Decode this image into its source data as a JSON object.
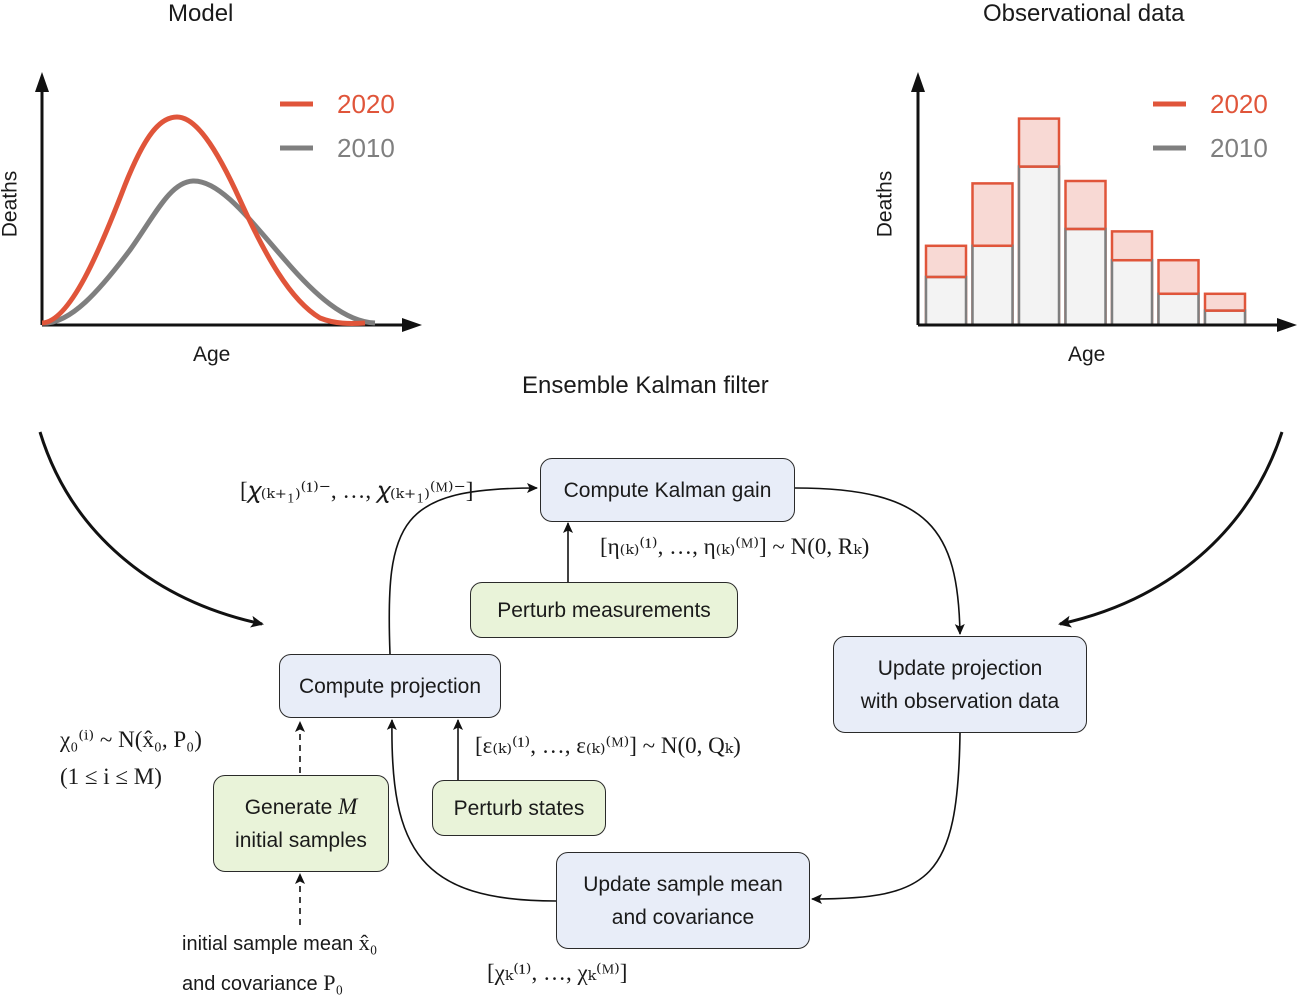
{
  "titles": {
    "model": "Model",
    "observational": "Observational data",
    "filter": "Ensemble Kalman filter"
  },
  "colors": {
    "series_2020": "#e0553a",
    "series_2010": "#7f7f7f",
    "box_blue": "#e8edf8",
    "box_green": "#e9f3d9"
  },
  "model_plot": {
    "ylabel": "Deaths",
    "xlabel": "Age",
    "legend": [
      "2020",
      "2010"
    ]
  },
  "obs_plot": {
    "ylabel": "Deaths",
    "xlabel": "Age",
    "legend": [
      "2020",
      "2010"
    ],
    "bars_2010": [
      1.0,
      1.65,
      3.3,
      2.0,
      1.35,
      0.65,
      0.3
    ],
    "bars_2020": [
      1.65,
      2.95,
      4.3,
      3.0,
      1.95,
      1.35,
      0.65
    ]
  },
  "boxes": {
    "kalman_gain": "Compute Kalman gain",
    "perturb_measurements": "Perturb measurements",
    "compute_projection": "Compute projection",
    "update_projection_1": "Update projection",
    "update_projection_2": "with observation data",
    "perturb_states": "Perturb states",
    "generate_1": "Generate",
    "generate_var": "M",
    "generate_2": "initial samples",
    "update_mean_1": "Update sample mean",
    "update_mean_2": "and covariance"
  },
  "math": {
    "prior_ensemble": "[𝜒₍ₖ₊₁₎⁽¹⁾⁻, …, 𝜒₍ₖ₊₁₎⁽ᴹ⁾⁻]",
    "eta_noise": "[η₍ₖ₎⁽¹⁾, …, η₍ₖ₎⁽ᴹ⁾] ~ N(0, Rₖ)",
    "eps_noise": "[ε₍ₖ₎⁽¹⁾, …, ε₍ₖ₎⁽ᴹ⁾] ~ N(0, Qₖ)",
    "init_dist": "χ₀⁽ⁱ⁾ ~ N(x̂₀, P₀)",
    "init_range": "(1 ≤ i ≤ M)",
    "init_mean_text": "initial sample mean",
    "init_mean_sym": "x̂₀",
    "init_cov_text": "and covariance",
    "init_cov_sym": "P₀",
    "posterior_ensemble": "[χₖ⁽¹⁾, …, χₖ⁽ᴹ⁾]"
  }
}
